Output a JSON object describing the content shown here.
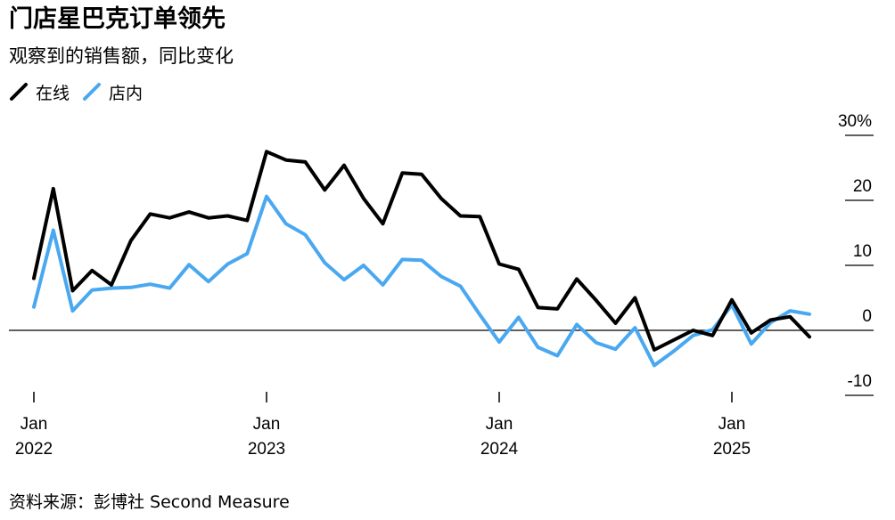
{
  "header": {
    "title": "门店星巴克订单领先",
    "subtitle": "观察到的销售额，同比变化"
  },
  "footer": {
    "source": "资料来源：彭博社 Second Measure"
  },
  "chart_data": {
    "type": "line",
    "title": "门店星巴克订单领先",
    "subtitle": "观察到的销售额，同比变化",
    "xlabel": "",
    "ylabel": "",
    "ylim": [
      -10,
      30
    ],
    "y_ticks": [
      {
        "value": 30,
        "label": "30%"
      },
      {
        "value": 20,
        "label": "20"
      },
      {
        "value": 10,
        "label": "10"
      },
      {
        "value": 0,
        "label": "0"
      },
      {
        "value": -10,
        "label": "-10"
      }
    ],
    "x_ticks": [
      {
        "month_index": 0,
        "month": "Jan",
        "year": "2022"
      },
      {
        "month_index": 12,
        "month": "Jan",
        "year": "2023"
      },
      {
        "month_index": 24,
        "month": "Jan",
        "year": "2024"
      },
      {
        "month_index": 36,
        "month": "Jan",
        "year": "2025"
      }
    ],
    "x": [
      "2022-01",
      "2022-02",
      "2022-03",
      "2022-04",
      "2022-05",
      "2022-06",
      "2022-07",
      "2022-08",
      "2022-09",
      "2022-10",
      "2022-11",
      "2022-12",
      "2023-01",
      "2023-02",
      "2023-03",
      "2023-04",
      "2023-05",
      "2023-06",
      "2023-07",
      "2023-08",
      "2023-09",
      "2023-10",
      "2023-11",
      "2023-12",
      "2024-01",
      "2024-02",
      "2024-03",
      "2024-04",
      "2024-05",
      "2024-06",
      "2024-07",
      "2024-08",
      "2024-09",
      "2024-10",
      "2024-11",
      "2024-12",
      "2025-01",
      "2025-02",
      "2025-03",
      "2025-04",
      "2025-05"
    ],
    "series": [
      {
        "name": "在线",
        "color": "#000000",
        "values": [
          8,
          21.8,
          6.1,
          9.2,
          7,
          13.8,
          17.9,
          17.3,
          18.2,
          17.3,
          17.6,
          16.9,
          27.5,
          26.2,
          25.9,
          21.6,
          25.4,
          20.3,
          16.4,
          24.2,
          24,
          20.3,
          17.6,
          17.5,
          10.2,
          9.4,
          3.5,
          3.3,
          7.9,
          4.6,
          1.1,
          5,
          -3,
          -1.5,
          0,
          -0.8,
          4.7,
          -0.4,
          1.6,
          2.1,
          -1
        ]
      },
      {
        "name": "店内",
        "color": "#4aa8f0",
        "values": [
          3.6,
          15.4,
          3,
          6.2,
          6.5,
          6.6,
          7.1,
          6.5,
          10.1,
          7.5,
          10.2,
          11.8,
          20.6,
          16.4,
          14.7,
          10.4,
          7.8,
          10,
          7,
          10.9,
          10.8,
          8.3,
          6.8,
          2.4,
          -1.8,
          2,
          -2.6,
          -3.9,
          0.9,
          -1.9,
          -2.9,
          0.4,
          -5.4,
          -3.2,
          -0.8,
          0.1,
          3.9,
          -2.1,
          1.2,
          3,
          2.5
        ]
      }
    ],
    "legend": "top-left",
    "grid": false,
    "zero_line": true
  }
}
